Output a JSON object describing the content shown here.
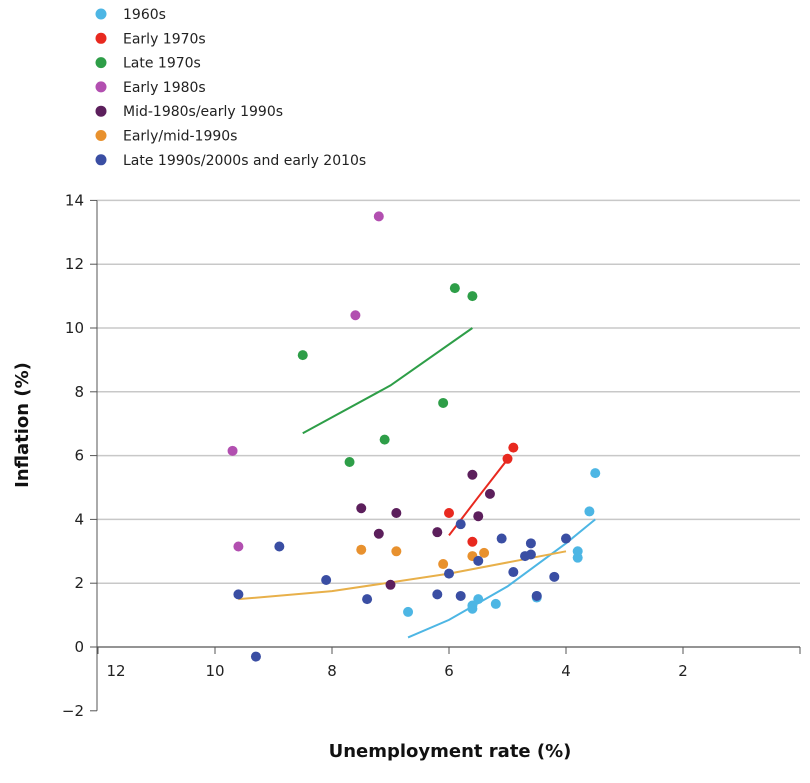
{
  "chart_data": {
    "type": "scatter",
    "xlabel": "Unemployment rate (%)",
    "ylabel": "Inflation (%)",
    "xlim": [
      12,
      0
    ],
    "ylim": [
      -2,
      14
    ],
    "x_reversed": true,
    "xticks": [
      "12",
      "10",
      "8",
      "6",
      "4",
      "2"
    ],
    "xtick_values": [
      12,
      10,
      8,
      6,
      4,
      2
    ],
    "yticks": [
      "14",
      "12",
      "10",
      "8",
      "6",
      "4",
      "2",
      "0",
      "−2"
    ],
    "ytick_values": [
      14,
      12,
      10,
      8,
      6,
      4,
      2,
      0,
      -2
    ],
    "grid": "horizontal",
    "legend": "top-left",
    "series": [
      {
        "name": "1960s",
        "color": "#4db6e4",
        "points": [
          [
            6.7,
            1.1
          ],
          [
            5.6,
            1.2
          ],
          [
            5.6,
            1.3
          ],
          [
            5.5,
            1.5
          ],
          [
            5.2,
            1.35
          ],
          [
            4.5,
            1.55
          ],
          [
            4.5,
            1.6
          ],
          [
            3.8,
            2.8
          ],
          [
            3.8,
            3.0
          ],
          [
            3.6,
            4.25
          ],
          [
            3.5,
            5.45
          ]
        ],
        "trend": [
          [
            6.7,
            0.3
          ],
          [
            6.0,
            0.85
          ],
          [
            5.0,
            1.9
          ],
          [
            4.0,
            3.25
          ],
          [
            3.5,
            4.0
          ]
        ]
      },
      {
        "name": "Early 1970s",
        "color": "#e8291f",
        "points": [
          [
            4.9,
            6.25
          ],
          [
            5.0,
            5.9
          ],
          [
            6.0,
            4.2
          ],
          [
            5.6,
            3.3
          ]
        ],
        "trend": [
          [
            6.0,
            3.5
          ],
          [
            5.5,
            4.7
          ],
          [
            4.95,
            6.0
          ]
        ]
      },
      {
        "name": "Late 1970s",
        "color": "#2e9e48",
        "points": [
          [
            8.5,
            9.15
          ],
          [
            7.7,
            5.8
          ],
          [
            7.1,
            6.5
          ],
          [
            6.1,
            7.65
          ],
          [
            5.9,
            11.25
          ],
          [
            5.6,
            11.0
          ]
        ],
        "trend": [
          [
            8.5,
            6.7
          ],
          [
            7.0,
            8.2
          ],
          [
            5.6,
            10.0
          ]
        ]
      },
      {
        "name": "Early 1980s",
        "color": "#b24fb0",
        "points": [
          [
            9.7,
            6.15
          ],
          [
            9.6,
            3.15
          ],
          [
            7.6,
            10.4
          ],
          [
            7.2,
            13.5
          ]
        ]
      },
      {
        "name": "Mid-1980s/early 1990s",
        "color": "#5c1f5c",
        "points": [
          [
            7.5,
            4.35
          ],
          [
            7.2,
            3.55
          ],
          [
            6.9,
            4.2
          ],
          [
            6.2,
            3.6
          ],
          [
            5.6,
            5.4
          ],
          [
            5.5,
            4.1
          ],
          [
            5.3,
            4.8
          ],
          [
            7.0,
            1.95
          ]
        ]
      },
      {
        "name": "Early/mid-1990s",
        "color": "#e8912e",
        "points": [
          [
            7.5,
            3.05
          ],
          [
            6.9,
            3.0
          ],
          [
            6.1,
            2.6
          ],
          [
            5.6,
            2.85
          ],
          [
            5.4,
            2.95
          ]
        ],
        "trend": [
          [
            9.6,
            1.5
          ],
          [
            8.0,
            1.75
          ],
          [
            6.0,
            2.3
          ],
          [
            4.0,
            3.0
          ]
        ],
        "trend_color": "#e8b04a"
      },
      {
        "name": "Late 1990s/2000s and early 2010s",
        "color": "#3a4ea3",
        "points": [
          [
            9.6,
            1.65
          ],
          [
            9.3,
            -0.3
          ],
          [
            8.9,
            3.15
          ],
          [
            8.1,
            2.1
          ],
          [
            7.4,
            1.5
          ],
          [
            6.2,
            1.65
          ],
          [
            5.8,
            1.6
          ],
          [
            6.0,
            2.3
          ],
          [
            5.8,
            3.85
          ],
          [
            5.5,
            2.7
          ],
          [
            5.1,
            3.4
          ],
          [
            4.9,
            2.35
          ],
          [
            4.7,
            2.85
          ],
          [
            4.6,
            2.9
          ],
          [
            4.6,
            3.25
          ],
          [
            4.2,
            2.2
          ],
          [
            4.0,
            3.4
          ],
          [
            4.5,
            1.6
          ]
        ]
      }
    ]
  }
}
